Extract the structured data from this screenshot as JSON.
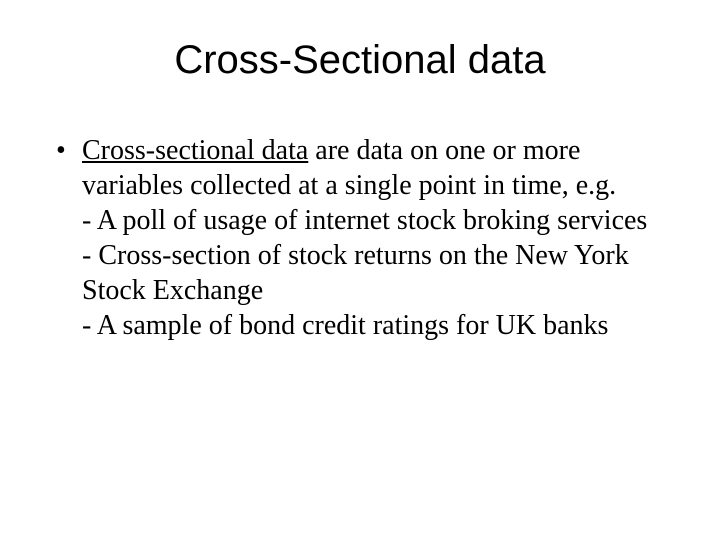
{
  "slide": {
    "title": "Cross-Sectional data",
    "title_font_family": "Arial",
    "title_font_size_pt": 40,
    "title_color": "#000000",
    "body_font_family": "Times New Roman",
    "body_font_size_pt": 28,
    "body_color": "#000000",
    "background_color": "#ffffff",
    "bullet": {
      "term": "Cross-sectional data",
      "term_underlined": true,
      "rest": " are data on one or more variables collected at a single point in time, e.g.",
      "sublines": [
        "- A poll of usage of internet stock  broking services",
        "- Cross-section of stock returns on the New York Stock Exchange",
        "- A sample of bond credit ratings for UK banks"
      ]
    }
  }
}
